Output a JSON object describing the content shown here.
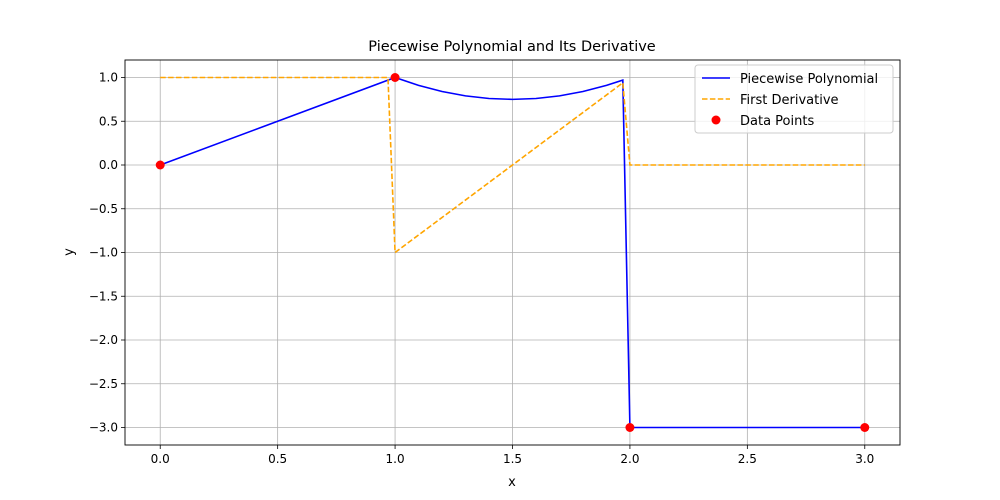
{
  "chart_data": {
    "type": "line",
    "title": "Piecewise Polynomial and Its Derivative",
    "xlabel": "x",
    "ylabel": "y",
    "xlim": [
      -0.15,
      3.15
    ],
    "ylim": [
      -3.2,
      1.2
    ],
    "xticks": [
      0.0,
      0.5,
      1.0,
      1.5,
      2.0,
      2.5,
      3.0
    ],
    "xtick_labels": [
      "0.0",
      "0.5",
      "1.0",
      "1.5",
      "2.0",
      "2.5",
      "3.0"
    ],
    "yticks": [
      1.0,
      0.5,
      0.0,
      -0.5,
      -1.0,
      -1.5,
      -2.0,
      -2.5,
      -3.0
    ],
    "ytick_labels": [
      "1.0",
      "0.5",
      "0.0",
      "−0.5",
      "−1.0",
      "−1.5",
      "−2.0",
      "−2.5",
      "−3.0"
    ],
    "grid": true,
    "legend_position": "top-right",
    "series": [
      {
        "name": "Piecewise Polynomial",
        "style": "solid",
        "color": "#0000ff",
        "x": [
          0,
          0.9697,
          1.0,
          1.1,
          1.2,
          1.3,
          1.4,
          1.5,
          1.6,
          1.7,
          1.8,
          1.9,
          1.9697,
          2.0,
          3.0
        ],
        "y": [
          0,
          0.9697,
          1.0,
          0.91,
          0.84,
          0.79,
          0.76,
          0.75,
          0.76,
          0.79,
          0.84,
          0.91,
          0.9706,
          -3.0,
          -3.0
        ]
      },
      {
        "name": "First Derivative",
        "style": "dashed",
        "color": "#ffa500",
        "x": [
          0,
          0.9697,
          1.0,
          1.9697,
          2.0,
          3.0
        ],
        "y": [
          1,
          1,
          -1,
          0.9394,
          0,
          0
        ]
      }
    ],
    "points": {
      "name": "Data Points",
      "color": "#ff0000",
      "x": [
        0,
        1,
        2,
        3
      ],
      "y": [
        0,
        1,
        -3,
        -3
      ]
    }
  }
}
